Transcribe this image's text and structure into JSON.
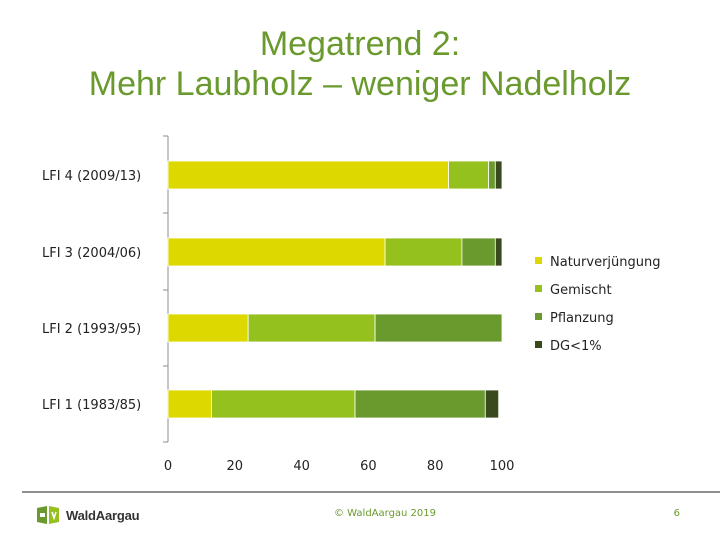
{
  "slide": {
    "title_line1": "Megatrend 2:",
    "title_line2": "Mehr Laubholz – weniger Nadelholz",
    "copyright": "© WaldAargau 2019",
    "page_number": "6",
    "logo_text": "WaldAargau"
  },
  "colors": {
    "title": "#6a9a2e",
    "naturverjuengung": "#dcd800",
    "gemischt": "#95c11f",
    "pflanzung": "#6a9a2e",
    "dg": "#3b4a1e"
  },
  "chart_data": {
    "type": "bar",
    "orientation": "horizontal",
    "stacked": true,
    "categories": [
      "LFI 4 (2009/13)",
      "LFI 3 (2004/06)",
      "LFI 2 (1993/95)",
      "LFI 1 (1983/85)"
    ],
    "series": [
      {
        "name": "Naturverjüngung",
        "color": "#dcd800",
        "values": [
          84,
          65,
          24,
          13
        ]
      },
      {
        "name": "Gemischt",
        "color": "#95c11f",
        "values": [
          12,
          23,
          38,
          43
        ]
      },
      {
        "name": "Pflanzung",
        "color": "#6a9a2e",
        "values": [
          2,
          10,
          38,
          39
        ]
      },
      {
        "name": "DG<1%",
        "color": "#3b4a1e",
        "values": [
          2,
          2,
          0,
          4
        ]
      }
    ],
    "x_ticks": [
      0,
      20,
      40,
      60,
      80,
      100
    ],
    "xlim": [
      0,
      100
    ],
    "grid": false,
    "legend_position": "right"
  }
}
